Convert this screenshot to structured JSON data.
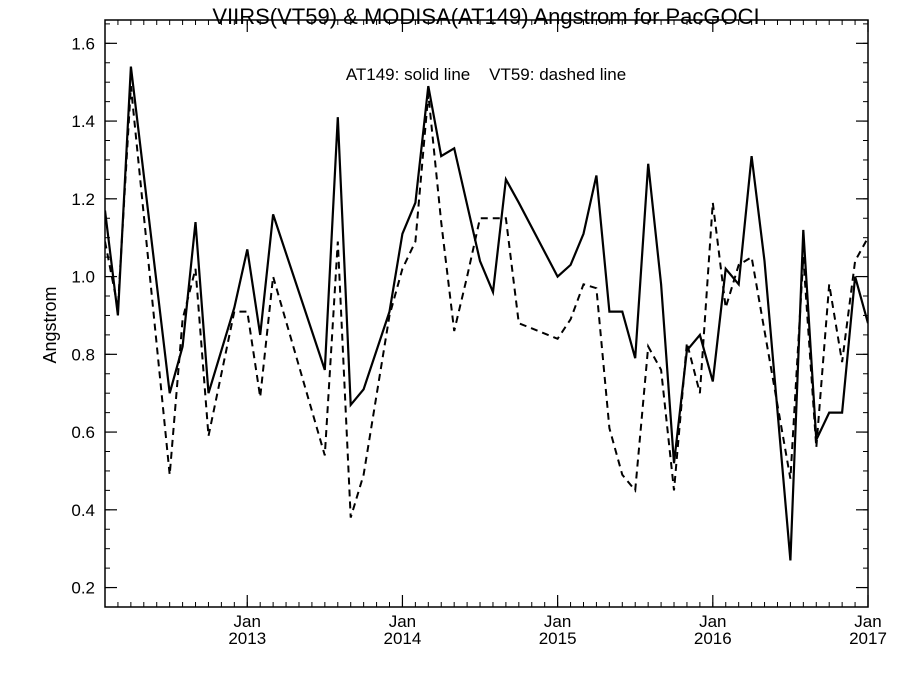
{
  "chart_data": {
    "type": "line",
    "title": "VIIRS(VT59) & MODISA(AT149)  Angstrom for PacGOCI",
    "ylabel": "Angstrom",
    "annotation": "AT149: solid line    VT59: dashed line",
    "xlim": [
      "2012-02",
      "2017-01"
    ],
    "ylim": [
      0.15,
      1.66
    ],
    "yticks": [
      0.2,
      0.4,
      0.6,
      0.8,
      1.0,
      1.2,
      1.4,
      1.6
    ],
    "ytick_labels": [
      "0.2",
      "0.4",
      "0.6",
      "0.8",
      "1.0",
      "1.2",
      "1.4",
      "1.6"
    ],
    "xticks": [
      {
        "at": "2013-01",
        "month": "Jan",
        "year": "2013"
      },
      {
        "at": "2014-01",
        "month": "Jan",
        "year": "2014"
      },
      {
        "at": "2015-01",
        "month": "Jan",
        "year": "2015"
      },
      {
        "at": "2016-01",
        "month": "Jan",
        "year": "2016"
      },
      {
        "at": "2017-01",
        "month": "Jan",
        "year": "2017"
      }
    ],
    "x": [
      "2012-02",
      "2012-03",
      "2012-04",
      "2012-05",
      "2012-06",
      "2012-07",
      "2012-08",
      "2012-09",
      "2012-10",
      "2012-11",
      "2012-12",
      "2013-01",
      "2013-02",
      "2013-03",
      "2013-04",
      "2013-05",
      "2013-06",
      "2013-07",
      "2013-08",
      "2013-09",
      "2013-10",
      "2013-11",
      "2013-12",
      "2014-01",
      "2014-02",
      "2014-03",
      "2014-04",
      "2014-05",
      "2014-06",
      "2014-07",
      "2014-08",
      "2014-09",
      "2014-10",
      "2014-11",
      "2014-12",
      "2015-01",
      "2015-02",
      "2015-03",
      "2015-04",
      "2015-05",
      "2015-06",
      "2015-07",
      "2015-08",
      "2015-09",
      "2015-10",
      "2015-11",
      "2015-12",
      "2016-01",
      "2016-02",
      "2016-03",
      "2016-04",
      "2016-05",
      "2016-06",
      "2016-07",
      "2016-08",
      "2016-09",
      "2016-10",
      "2016-11",
      "2016-12",
      "2017-01"
    ],
    "series": [
      {
        "name": "AT149",
        "style": "solid",
        "values": [
          1.17,
          0.9,
          1.54,
          null,
          null,
          0.7,
          0.82,
          1.14,
          0.7,
          null,
          0.92,
          1.07,
          0.85,
          1.16,
          null,
          null,
          null,
          0.76,
          1.41,
          0.67,
          0.71,
          null,
          0.91,
          1.11,
          1.19,
          1.49,
          1.31,
          1.33,
          null,
          1.04,
          0.96,
          1.25,
          1.19,
          null,
          null,
          1.0,
          1.03,
          1.11,
          1.26,
          0.91,
          0.91,
          0.79,
          1.29,
          0.98,
          0.52,
          0.81,
          0.85,
          0.73,
          1.02,
          0.98,
          1.31,
          1.04,
          null,
          0.27,
          1.12,
          0.58,
          0.65,
          0.65,
          1.0,
          0.88
        ]
      },
      {
        "name": "VT59",
        "style": "dashed",
        "values": [
          1.09,
          0.92,
          1.49,
          null,
          null,
          0.49,
          0.89,
          1.02,
          0.59,
          null,
          0.91,
          0.91,
          0.69,
          1.0,
          null,
          null,
          null,
          0.54,
          1.09,
          0.38,
          0.49,
          null,
          0.9,
          1.02,
          1.09,
          1.47,
          1.14,
          0.86,
          1.0,
          1.15,
          1.15,
          1.15,
          0.88,
          null,
          null,
          0.84,
          0.89,
          0.98,
          0.97,
          0.61,
          0.49,
          0.45,
          0.82,
          0.76,
          0.45,
          0.83,
          0.7,
          1.19,
          0.92,
          1.03,
          1.05,
          null,
          null,
          0.48,
          1.05,
          0.56,
          0.98,
          0.78,
          1.04,
          1.1
        ]
      }
    ]
  }
}
